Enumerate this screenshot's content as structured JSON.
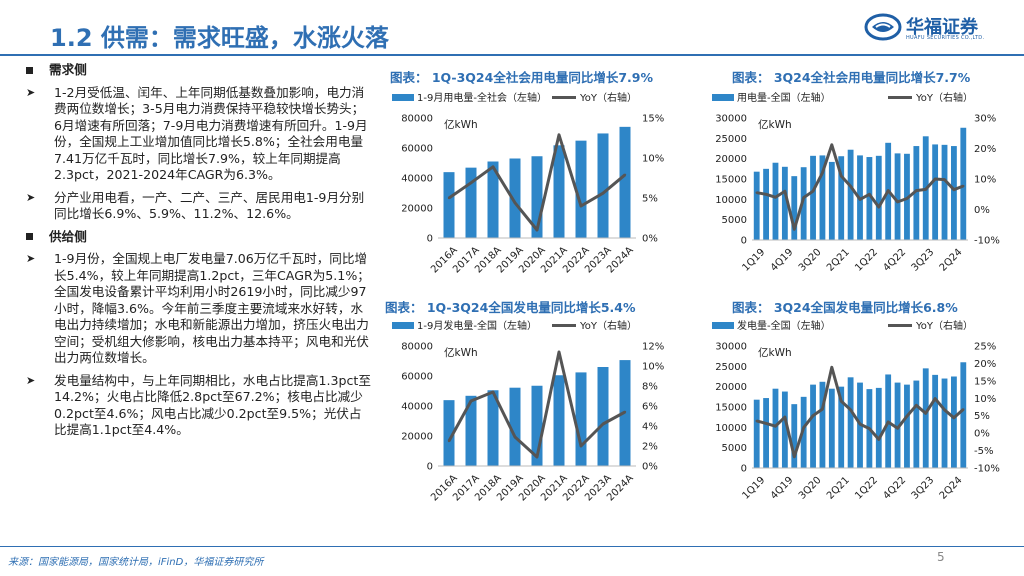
{
  "header": {
    "title": "1.2 供需：需求旺盛，水涨火落"
  },
  "logo": {
    "cn": "华福证券",
    "en": "HUAFU SECURITIES CO.,LTD."
  },
  "left": {
    "demand_heading": "需求侧",
    "demand_bullets": [
      "1-2月受低温、闰年、上年同期低基数叠加影响，电力消费两位数增长；3-5月电力消费保持平稳较快增长势头；6月增速有所回落；7-9月电力消费增速有所回升。1-9月份，全国规上工业增加值同比增长5.8%；全社会用电量7.41万亿千瓦时，同比增长7.9%，较上年同期提高2.3pct，2021-2024年CAGR为6.3%。",
      "分产业用电看，一产、二产、三产、居民用电1-9月分别同比增长6.9%、5.9%、11.2%、12.6%。"
    ],
    "supply_heading": "供给侧",
    "supply_bullets": [
      "1-9月份，全国规上电厂发电量7.06万亿千瓦时，同比增长5.4%，较上年同期提高1.2pct，三年CAGR为5.1%；全国发电设备累计平均利用小时2619小时，同比减少97小时，降幅3.6%。今年前三季度主要流域来水好转，水电出力持续增加；水电和新能源出力增加，挤压火电出力空间；受机组大修影响，核电出力基本持平；风电和光伏出力两位数增长。",
      "发电量结构中，与上年同期相比，水电占比提高1.3pct至14.2%；火电占比降低2.8pct至67.2%；核电占比减少0.2pct至4.6%；风电占比减少0.2pct至9.5%；光伏占比提高1.1pct至4.4%。"
    ]
  },
  "footer": {
    "source": "来源：国家能源局，国家统计局，iFinD，华福证券研究所",
    "page": "5"
  },
  "colors": {
    "bar": "#2e86c8",
    "line": "#555555",
    "accent": "#2f6fb3"
  },
  "chart_data": [
    {
      "id": "c1",
      "type": "bar",
      "chart_title": "图表：  1Q-3Q24全社会用电量同比增长7.9%",
      "legend_bar": "1-9月用电量-全社会（左轴）",
      "legend_line": "YoY（右轴）",
      "unit": "亿kWh",
      "categories": [
        "2016A",
        "2017A",
        "2018A",
        "2019A",
        "2020A",
        "2021A",
        "2022A",
        "2023A",
        "2024A"
      ],
      "xlabels": [
        "2016A",
        "2017A",
        "2018A",
        "2019A",
        "2020A",
        "2021A",
        "2022A",
        "2023A",
        "2024A"
      ],
      "values": [
        43900,
        46900,
        51000,
        53000,
        54500,
        61800,
        64900,
        69700,
        74100
      ],
      "yoy": [
        5.0,
        6.9,
        8.9,
        4.4,
        1.0,
        12.9,
        4.0,
        5.6,
        7.9
      ],
      "ylim": [
        0,
        80000
      ],
      "yticks": [
        "0",
        "20000",
        "40000",
        "60000",
        "80000"
      ],
      "ytick_vals": [
        0,
        20000,
        40000,
        60000,
        80000
      ],
      "y2lim": [
        0,
        15
      ],
      "y2ticks": [
        "0%",
        "5%",
        "10%",
        "15%"
      ],
      "y2tick_vals": [
        0,
        5,
        10,
        15
      ]
    },
    {
      "id": "c2",
      "type": "bar",
      "chart_title": "图表：  3Q24全社会用电量同比增长7.7%",
      "legend_bar": "用电量-全国（左轴）",
      "legend_line": "YoY（右轴）",
      "unit": "亿kWh",
      "categories": [
        "1Q19",
        "2Q19",
        "3Q19",
        "4Q19",
        "1Q20",
        "2Q20",
        "3Q20",
        "4Q20",
        "1Q21",
        "2Q21",
        "3Q21",
        "4Q21",
        "1Q22",
        "2Q22",
        "3Q22",
        "4Q22",
        "1Q23",
        "2Q23",
        "3Q23",
        "4Q23",
        "1Q24",
        "2Q24",
        "3Q24"
      ],
      "xlabels": [
        "1Q19",
        "4Q19",
        "3Q20",
        "2Q21",
        "1Q22",
        "4Q22",
        "3Q23",
        "2Q24"
      ],
      "xlabel_idx": [
        0,
        3,
        6,
        9,
        12,
        15,
        18,
        21
      ],
      "values": [
        16800,
        17500,
        19000,
        18000,
        15700,
        17900,
        20700,
        20800,
        19200,
        20600,
        22200,
        20800,
        20400,
        20700,
        23900,
        21300,
        21200,
        23100,
        25500,
        23500,
        23400,
        23100,
        27600
      ],
      "yoy": [
        5.5,
        5.0,
        4.0,
        6.0,
        -6.5,
        3.9,
        6.0,
        12.0,
        21.2,
        11.0,
        7.6,
        3.3,
        5.0,
        0.8,
        6.2,
        2.5,
        3.6,
        6.2,
        6.6,
        10.0,
        9.8,
        6.5,
        7.7
      ],
      "ylim": [
        0,
        30000
      ],
      "yticks": [
        "0",
        "5000",
        "10000",
        "15000",
        "20000",
        "25000",
        "30000"
      ],
      "ytick_vals": [
        0,
        5000,
        10000,
        15000,
        20000,
        25000,
        30000
      ],
      "y2lim": [
        -10,
        30
      ],
      "y2ticks": [
        "-10%",
        "0%",
        "10%",
        "20%",
        "30%"
      ],
      "y2tick_vals": [
        -10,
        0,
        10,
        20,
        30
      ]
    },
    {
      "id": "c3",
      "type": "bar",
      "chart_title": "图表：  1Q-3Q24全国发电量同比增长5.4%",
      "legend_bar": "1-9月发电量-全国（左轴）",
      "legend_line": "YoY（右轴）",
      "unit": "亿kWh",
      "categories": [
        "2016A",
        "2017A",
        "2018A",
        "2019A",
        "2020A",
        "2021A",
        "2022A",
        "2023A",
        "2024A"
      ],
      "xlabels": [
        "2016A",
        "2017A",
        "2018A",
        "2019A",
        "2020A",
        "2021A",
        "2022A",
        "2023A",
        "2024A"
      ],
      "values": [
        43900,
        46800,
        50500,
        52200,
        53500,
        60500,
        62400,
        66000,
        70600
      ],
      "yoy": [
        2.5,
        6.5,
        7.4,
        2.9,
        0.9,
        11.4,
        2.0,
        4.2,
        5.4
      ],
      "ylim": [
        0,
        80000
      ],
      "yticks": [
        "0",
        "20000",
        "40000",
        "60000",
        "80000"
      ],
      "ytick_vals": [
        0,
        20000,
        40000,
        60000,
        80000
      ],
      "y2lim": [
        0,
        12
      ],
      "y2ticks": [
        "0%",
        "2%",
        "4%",
        "6%",
        "8%",
        "10%",
        "12%"
      ],
      "y2tick_vals": [
        0,
        2,
        4,
        6,
        8,
        10,
        12
      ]
    },
    {
      "id": "c4",
      "type": "bar",
      "chart_title": "图表：  3Q24全国发电量同比增长6.8%",
      "legend_bar": "发电量-全国（左轴）",
      "legend_line": "YoY（右轴）",
      "unit": "亿kWh",
      "categories": [
        "1Q19",
        "2Q19",
        "3Q19",
        "4Q19",
        "1Q20",
        "2Q20",
        "3Q20",
        "4Q20",
        "1Q21",
        "2Q21",
        "3Q21",
        "4Q21",
        "1Q22",
        "2Q22",
        "3Q22",
        "4Q22",
        "1Q23",
        "2Q23",
        "3Q23",
        "4Q23",
        "1Q24",
        "2Q24",
        "3Q24"
      ],
      "xlabels": [
        "1Q19",
        "4Q19",
        "3Q20",
        "2Q21",
        "1Q22",
        "4Q22",
        "3Q23",
        "2Q24"
      ],
      "xlabel_idx": [
        0,
        3,
        6,
        9,
        12,
        15,
        18,
        21
      ],
      "values": [
        16800,
        17200,
        19500,
        18800,
        15700,
        17500,
        20500,
        21200,
        19500,
        20000,
        22300,
        21000,
        19400,
        19700,
        23000,
        21000,
        20500,
        21500,
        24500,
        22900,
        22000,
        22500,
        26000
      ],
      "yoy": [
        3.5,
        2.8,
        2.0,
        4.6,
        -6.8,
        1.6,
        5.0,
        6.9,
        18.9,
        9.2,
        6.7,
        2.6,
        1.3,
        -1.8,
        3.2,
        1.4,
        4.9,
        8.0,
        5.7,
        9.9,
        6.7,
        4.4,
        6.8
      ],
      "ylim": [
        0,
        30000
      ],
      "yticks": [
        "0",
        "5000",
        "10000",
        "15000",
        "20000",
        "25000",
        "30000"
      ],
      "ytick_vals": [
        0,
        5000,
        10000,
        15000,
        20000,
        25000,
        30000
      ],
      "y2lim": [
        -10,
        25
      ],
      "y2ticks": [
        "-10%",
        "-5%",
        "0%",
        "5%",
        "10%",
        "15%",
        "20%",
        "25%"
      ],
      "y2tick_vals": [
        -10,
        -5,
        0,
        5,
        10,
        15,
        20,
        25
      ]
    }
  ]
}
